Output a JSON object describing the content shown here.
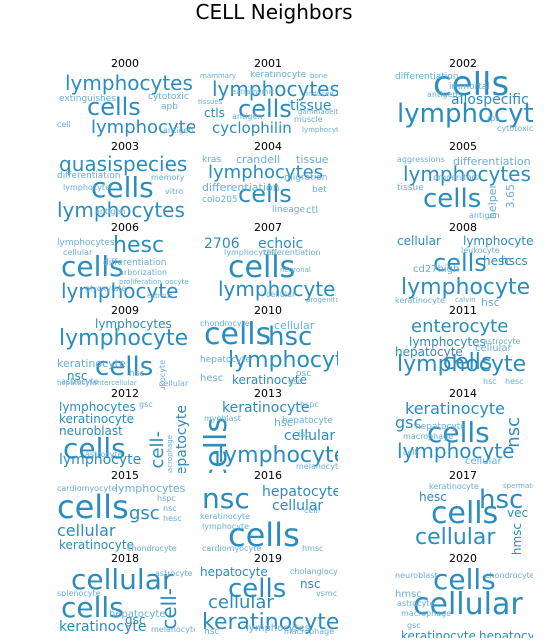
{
  "title": "CELL Neighbors",
  "word_color": "#2b8cbe",
  "word_color_light": "#6baed6",
  "panels": [
    {
      "year": "2000",
      "words": [
        {
          "text": "lymphocytes"
        },
        {
          "text": "cells"
        },
        {
          "text": "lymphocyte"
        },
        {
          "text": "extinguishes"
        },
        {
          "text": "cytotoxic"
        },
        {
          "text": "apb"
        },
        {
          "text": "antigen"
        },
        {
          "text": "cell"
        }
      ]
    },
    {
      "year": "2001",
      "words": [
        {
          "text": "lymphocytes"
        },
        {
          "text": "cells"
        },
        {
          "text": "cyclophilin"
        },
        {
          "text": "tissue"
        },
        {
          "text": "ctls"
        },
        {
          "text": "keratinocyte"
        },
        {
          "text": "antigen"
        },
        {
          "text": "muscle"
        },
        {
          "text": "lymphocyte"
        },
        {
          "text": "mammary"
        },
        {
          "text": "extrathymic"
        },
        {
          "text": "tissues"
        },
        {
          "text": "induced"
        },
        {
          "text": "gammadelta"
        },
        {
          "text": "bone"
        }
      ]
    },
    {
      "year": "2002",
      "words": [
        {
          "text": "cells"
        },
        {
          "text": "lymphocyte"
        },
        {
          "text": "differentiation"
        },
        {
          "text": "allospecific"
        },
        {
          "text": "immortal"
        },
        {
          "text": "antigens"
        },
        {
          "text": "cytotoxic"
        },
        {
          "text": "rps"
        }
      ]
    },
    {
      "year": "2003",
      "words": [
        {
          "text": "quasispecies"
        },
        {
          "text": "cells"
        },
        {
          "text": "lymphocytes"
        },
        {
          "text": "differentiation"
        },
        {
          "text": "lymphocyte"
        },
        {
          "text": "memory"
        },
        {
          "text": "vitro"
        },
        {
          "text": "antigen"
        }
      ]
    },
    {
      "year": "2004",
      "words": [
        {
          "text": "lymphocytes"
        },
        {
          "text": "cells"
        },
        {
          "text": "kras"
        },
        {
          "text": "crandell"
        },
        {
          "text": "tissue"
        },
        {
          "text": "differentiation"
        },
        {
          "text": "migration"
        },
        {
          "text": "colo205"
        },
        {
          "text": "lineage"
        },
        {
          "text": "ctl"
        },
        {
          "text": "bet"
        }
      ]
    },
    {
      "year": "2005",
      "words": [
        {
          "text": "lymphocytes"
        },
        {
          "text": "cells"
        },
        {
          "text": "differentiation"
        },
        {
          "text": "aggressions"
        },
        {
          "text": "progenitors"
        },
        {
          "text": "tissue"
        },
        {
          "text": "helper"
        },
        {
          "text": "3.65"
        },
        {
          "text": "antigen"
        }
      ]
    },
    {
      "year": "2006",
      "words": [
        {
          "text": "hesc"
        },
        {
          "text": "cells"
        },
        {
          "text": "lymphocyte"
        },
        {
          "text": "lymphocytes"
        },
        {
          "text": "cellular"
        },
        {
          "text": "differentiation"
        },
        {
          "text": "arborization"
        },
        {
          "text": "proliferation"
        },
        {
          "text": "glyoxylate"
        },
        {
          "text": "estrous"
        },
        {
          "text": "oocyte"
        }
      ]
    },
    {
      "year": "2007",
      "words": [
        {
          "text": "2706"
        },
        {
          "text": "echoic"
        },
        {
          "text": "cells"
        },
        {
          "text": "lymphocyte"
        },
        {
          "text": "lymphocytes"
        },
        {
          "text": "differentiation"
        },
        {
          "text": "cellular"
        },
        {
          "text": "progenitors"
        },
        {
          "text": "neuronal"
        }
      ]
    },
    {
      "year": "2008",
      "words": [
        {
          "text": "cellular"
        },
        {
          "text": "lymphocytes"
        },
        {
          "text": "cells"
        },
        {
          "text": "lymphocyte"
        },
        {
          "text": "hesc"
        },
        {
          "text": "hscs"
        },
        {
          "text": "cd27high"
        },
        {
          "text": "leukocyte"
        },
        {
          "text": "keratinocyte"
        },
        {
          "text": "calvin"
        },
        {
          "text": "hsc"
        }
      ]
    },
    {
      "year": "2009",
      "words": [
        {
          "text": "lymphocytes"
        },
        {
          "text": "lymphocyte"
        },
        {
          "text": "cells"
        },
        {
          "text": "keratinocyte"
        },
        {
          "text": "nsc"
        },
        {
          "text": "hsc"
        },
        {
          "text": "astrocyte"
        },
        {
          "text": "leukocyte"
        },
        {
          "text": "intercellular"
        },
        {
          "text": "hepatocyte"
        },
        {
          "text": "cellular"
        }
      ]
    },
    {
      "year": "2010",
      "words": [
        {
          "text": "cells"
        },
        {
          "text": "hsc"
        },
        {
          "text": "lymphocyte"
        },
        {
          "text": "cellular"
        },
        {
          "text": "chondrocyte"
        },
        {
          "text": "hepatocyte"
        },
        {
          "text": "keratinocyte"
        },
        {
          "text": "hesc"
        },
        {
          "text": "osc"
        },
        {
          "text": "nsc"
        }
      ]
    },
    {
      "year": "2011",
      "words": [
        {
          "text": "enterocyte"
        },
        {
          "text": "lymphocytes"
        },
        {
          "text": "hepatocyte"
        },
        {
          "text": "lymphocyte"
        },
        {
          "text": "cells"
        },
        {
          "text": "cellular"
        },
        {
          "text": "astrocyte"
        },
        {
          "text": "hsc"
        },
        {
          "text": "hesc"
        }
      ]
    },
    {
      "year": "2012",
      "words": [
        {
          "text": "lymphocytes"
        },
        {
          "text": "keratinocyte"
        },
        {
          "text": "neuroblast"
        },
        {
          "text": "cells"
        },
        {
          "text": "lymphocyte"
        },
        {
          "text": "astrocyte"
        },
        {
          "text": "cell-"
        },
        {
          "text": "hepatocyte"
        },
        {
          "text": "macrophage"
        },
        {
          "text": "gsc"
        }
      ]
    },
    {
      "year": "2013",
      "words": [
        {
          "text": "keratinocyte"
        },
        {
          "text": "cells"
        },
        {
          "text": "lymphocyte"
        },
        {
          "text": "hsc"
        },
        {
          "text": "cellular"
        },
        {
          "text": "hepatocyte"
        },
        {
          "text": "myoblast"
        },
        {
          "text": "hspc"
        },
        {
          "text": "isc"
        },
        {
          "text": "melanocyte"
        }
      ]
    },
    {
      "year": "2014",
      "words": [
        {
          "text": "keratinocyte"
        },
        {
          "text": "cells"
        },
        {
          "text": "lymphocyte"
        },
        {
          "text": "gsc"
        },
        {
          "text": "nsc"
        },
        {
          "text": "cellular"
        },
        {
          "text": "hepatocyte"
        },
        {
          "text": "macrophage"
        },
        {
          "text": "cell-"
        }
      ]
    },
    {
      "year": "2015",
      "words": [
        {
          "text": "lymphocytes"
        },
        {
          "text": "cells"
        },
        {
          "text": "gsc"
        },
        {
          "text": "cellular"
        },
        {
          "text": "keratinocyte"
        },
        {
          "text": "cardiomyocyte"
        },
        {
          "text": "hspc"
        },
        {
          "text": "hesc"
        },
        {
          "text": "nsc"
        },
        {
          "text": "chondrocyte"
        }
      ]
    },
    {
      "year": "2016",
      "words": [
        {
          "text": "nsc"
        },
        {
          "text": "hepatocyte"
        },
        {
          "text": "cells"
        },
        {
          "text": "cellular"
        },
        {
          "text": "keratinocyte"
        },
        {
          "text": "lymphocyte"
        },
        {
          "text": "cell-"
        },
        {
          "text": "cardiomyocyte"
        },
        {
          "text": "hmsc"
        }
      ]
    },
    {
      "year": "2017",
      "words": [
        {
          "text": "hsc"
        },
        {
          "text": "cells"
        },
        {
          "text": "cellular"
        },
        {
          "text": "hesc"
        },
        {
          "text": "vec"
        },
        {
          "text": "hmsc"
        },
        {
          "text": "spermatogonia"
        },
        {
          "text": "keratinocyte"
        }
      ]
    },
    {
      "year": "2018",
      "words": [
        {
          "text": "cellular"
        },
        {
          "text": "cells"
        },
        {
          "text": "cell-"
        },
        {
          "text": "keratinocyte"
        },
        {
          "text": "gsc"
        },
        {
          "text": "hepatocyte"
        },
        {
          "text": "astrocyte"
        },
        {
          "text": "splenocyte"
        },
        {
          "text": "melanocyte"
        }
      ]
    },
    {
      "year": "2019",
      "words": [
        {
          "text": "hepatocyte"
        },
        {
          "text": "cells"
        },
        {
          "text": "nsc"
        },
        {
          "text": "cellular"
        },
        {
          "text": "keratinocyte"
        },
        {
          "text": "cholangiocyte"
        },
        {
          "text": "vsmc"
        },
        {
          "text": "lymphocytes"
        },
        {
          "text": "hsc"
        },
        {
          "text": "macrophage"
        }
      ]
    },
    {
      "year": "2020",
      "words": [
        {
          "text": "cells"
        },
        {
          "text": "cellular"
        },
        {
          "text": "neuroblast"
        },
        {
          "text": "chondrocyte"
        },
        {
          "text": "hmsc"
        },
        {
          "text": "astrocyte"
        },
        {
          "text": "keratinocyte"
        },
        {
          "text": "hepatocyte"
        },
        {
          "text": "macrophage"
        },
        {
          "text": "gsc"
        }
      ]
    }
  ]
}
